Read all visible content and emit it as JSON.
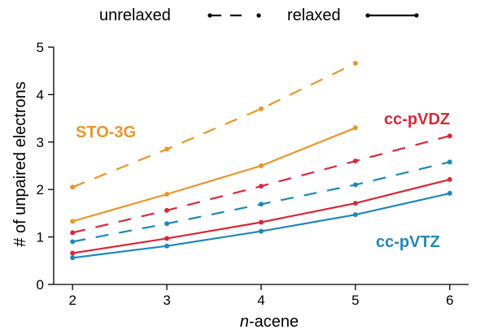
{
  "chart_data": {
    "type": "line",
    "xlabel_italic": "n",
    "xlabel_rest": "-acene",
    "ylabel": "# of unpaired electrons",
    "x": [
      2,
      3,
      4,
      5,
      6
    ],
    "xlim": [
      1.8,
      6.2
    ],
    "ylim": [
      0,
      5
    ],
    "xticks": [
      2,
      3,
      4,
      5,
      6
    ],
    "yticks": [
      0,
      1,
      2,
      3,
      4,
      5
    ],
    "grid": false,
    "legend": {
      "placement": "top-center",
      "entries": [
        {
          "label": "unrelaxed",
          "style": "dashed"
        },
        {
          "label": "relaxed",
          "style": "solid"
        }
      ]
    },
    "series": [
      {
        "basis": "STO-3G",
        "variant": "unrelaxed",
        "color": "#E8962B",
        "values": [
          2.05,
          2.85,
          3.7,
          4.66,
          null
        ]
      },
      {
        "basis": "STO-3G",
        "variant": "relaxed",
        "color": "#E8962B",
        "values": [
          1.33,
          1.9,
          2.5,
          3.3,
          null
        ]
      },
      {
        "basis": "cc-pVDZ",
        "variant": "unrelaxed",
        "color": "#D42B3A",
        "values": [
          1.09,
          1.56,
          2.07,
          2.6,
          3.13
        ]
      },
      {
        "basis": "cc-pVDZ",
        "variant": "relaxed",
        "color": "#D42B3A",
        "values": [
          0.66,
          0.97,
          1.31,
          1.71,
          2.21
        ]
      },
      {
        "basis": "cc-pVTZ",
        "variant": "unrelaxed",
        "color": "#1F88B9",
        "values": [
          0.9,
          1.28,
          1.69,
          2.1,
          2.58
        ]
      },
      {
        "basis": "cc-pVTZ",
        "variant": "relaxed",
        "color": "#1F88B9",
        "values": [
          0.56,
          0.81,
          1.12,
          1.47,
          1.92
        ]
      }
    ],
    "annotations": [
      {
        "text": "STO-3G",
        "color": "#E8962B"
      },
      {
        "text": "cc-pVDZ",
        "color": "#D42B3A"
      },
      {
        "text": "cc-pVTZ",
        "color": "#1F88B9"
      }
    ]
  }
}
